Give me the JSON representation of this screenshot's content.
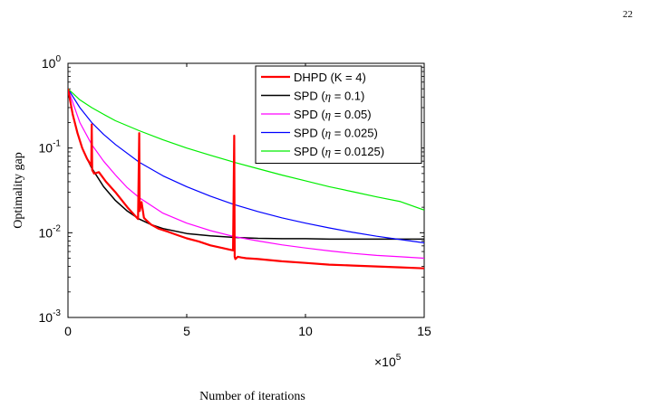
{
  "page": {
    "number": "22"
  },
  "chart_data": {
    "type": "line",
    "xlabel": "Number of iterations",
    "ylabel": "Optimality gap",
    "x_multiplier_label": "×10",
    "x_multiplier_exponent": "5",
    "xlim": [
      0,
      15
    ],
    "ylim": [
      0.001,
      1
    ],
    "yscale": "log",
    "grid": false,
    "legend_position": "top-right",
    "xticks": [
      0,
      5,
      10,
      15
    ],
    "xtick_labels": [
      "0",
      "5",
      "10",
      "15"
    ],
    "yticks": [
      0.001,
      0.01,
      0.1,
      1
    ],
    "ytick_labels": [
      {
        "base": "10",
        "exp": "-3"
      },
      {
        "base": "10",
        "exp": "-2"
      },
      {
        "base": "10",
        "exp": "-1"
      },
      {
        "base": "10",
        "exp": "0"
      }
    ],
    "series": [
      {
        "legend_parts": [
          "DHPD (K = 4)"
        ],
        "color": "#ff0000",
        "stroke_width": 2.2,
        "x": [
          0,
          0.2,
          0.4,
          0.6,
          0.8,
          0.98,
          1.0,
          1.02,
          1.1,
          1.3,
          1.6,
          2.0,
          2.5,
          2.95,
          3.0,
          3.02,
          3.1,
          3.2,
          3.3,
          3.5,
          3.8,
          4.2,
          4.6,
          5.0,
          5.5,
          6.0,
          6.5,
          6.95,
          7.0,
          7.02,
          7.05,
          7.15,
          7.3,
          7.5,
          8.0,
          9.0,
          10.0,
          11.0,
          12.0,
          13.0,
          14.0,
          15.0
        ],
        "y": [
          0.5,
          0.25,
          0.15,
          0.1,
          0.075,
          0.062,
          0.19,
          0.055,
          0.05,
          0.052,
          0.04,
          0.03,
          0.02,
          0.0145,
          0.15,
          0.018,
          0.023,
          0.015,
          0.014,
          0.0125,
          0.0112,
          0.0103,
          0.0094,
          0.0086,
          0.0079,
          0.0071,
          0.0066,
          0.0062,
          0.14,
          0.0052,
          0.0049,
          0.0052,
          0.0051,
          0.005,
          0.0049,
          0.0046,
          0.0044,
          0.0042,
          0.0041,
          0.004,
          0.0039,
          0.0038
        ]
      },
      {
        "legend_parts": [
          "SPD (",
          "η",
          " = 0.1)"
        ],
        "color": "#000000",
        "stroke_width": 1.5,
        "x": [
          0,
          0.2,
          0.4,
          0.6,
          0.8,
          1.0,
          1.5,
          2.0,
          2.5,
          3.0,
          3.5,
          4.0,
          5.0,
          6.0,
          7.0,
          8.0,
          9.0,
          10.0,
          11.0,
          12.0,
          13.0,
          14.0,
          15.0
        ],
        "y": [
          0.5,
          0.25,
          0.15,
          0.1,
          0.075,
          0.058,
          0.035,
          0.024,
          0.018,
          0.0145,
          0.0125,
          0.0112,
          0.0098,
          0.0092,
          0.0088,
          0.0086,
          0.0085,
          0.0085,
          0.0084,
          0.0084,
          0.0084,
          0.0084,
          0.0084
        ]
      },
      {
        "legend_parts": [
          "SPD (",
          "η",
          " = 0.05)"
        ],
        "color": "#ff00ff",
        "stroke_width": 1.2,
        "x": [
          0,
          0.5,
          1.0,
          1.5,
          2.0,
          2.5,
          3.0,
          4.0,
          5.0,
          6.0,
          7.0,
          8.0,
          9.0,
          10.0,
          11.0,
          12.0,
          13.0,
          14.0,
          15.0
        ],
        "y": [
          0.5,
          0.2,
          0.11,
          0.07,
          0.048,
          0.034,
          0.026,
          0.017,
          0.013,
          0.0106,
          0.009,
          0.008,
          0.0072,
          0.0066,
          0.0061,
          0.0057,
          0.0054,
          0.0052,
          0.005
        ]
      },
      {
        "legend_parts": [
          "SPD (",
          "η",
          " = 0.025)"
        ],
        "color": "#0000ff",
        "stroke_width": 1.2,
        "x": [
          0,
          0.5,
          1.0,
          1.5,
          2.0,
          3.0,
          4.0,
          5.0,
          6.0,
          7.0,
          8.0,
          9.0,
          10.0,
          11.0,
          12.0,
          13.0,
          14.0,
          15.0
        ],
        "y": [
          0.5,
          0.3,
          0.2,
          0.145,
          0.11,
          0.068,
          0.047,
          0.035,
          0.027,
          0.0215,
          0.0178,
          0.015,
          0.013,
          0.0114,
          0.0101,
          0.0091,
          0.0083,
          0.0076
        ]
      },
      {
        "legend_parts": [
          "SPD (",
          "η",
          " = 0.0125)"
        ],
        "color": "#00ee00",
        "stroke_width": 1.2,
        "x": [
          0,
          0.5,
          1.0,
          1.5,
          2.0,
          3.0,
          4.0,
          5.0,
          6.0,
          7.0,
          8.0,
          9.0,
          10.0,
          11.0,
          12.0,
          13.0,
          14.0,
          15.0
        ],
        "y": [
          0.5,
          0.37,
          0.3,
          0.25,
          0.21,
          0.16,
          0.125,
          0.1,
          0.082,
          0.068,
          0.057,
          0.048,
          0.041,
          0.035,
          0.0305,
          0.0265,
          0.0233,
          0.0185
        ]
      }
    ]
  }
}
